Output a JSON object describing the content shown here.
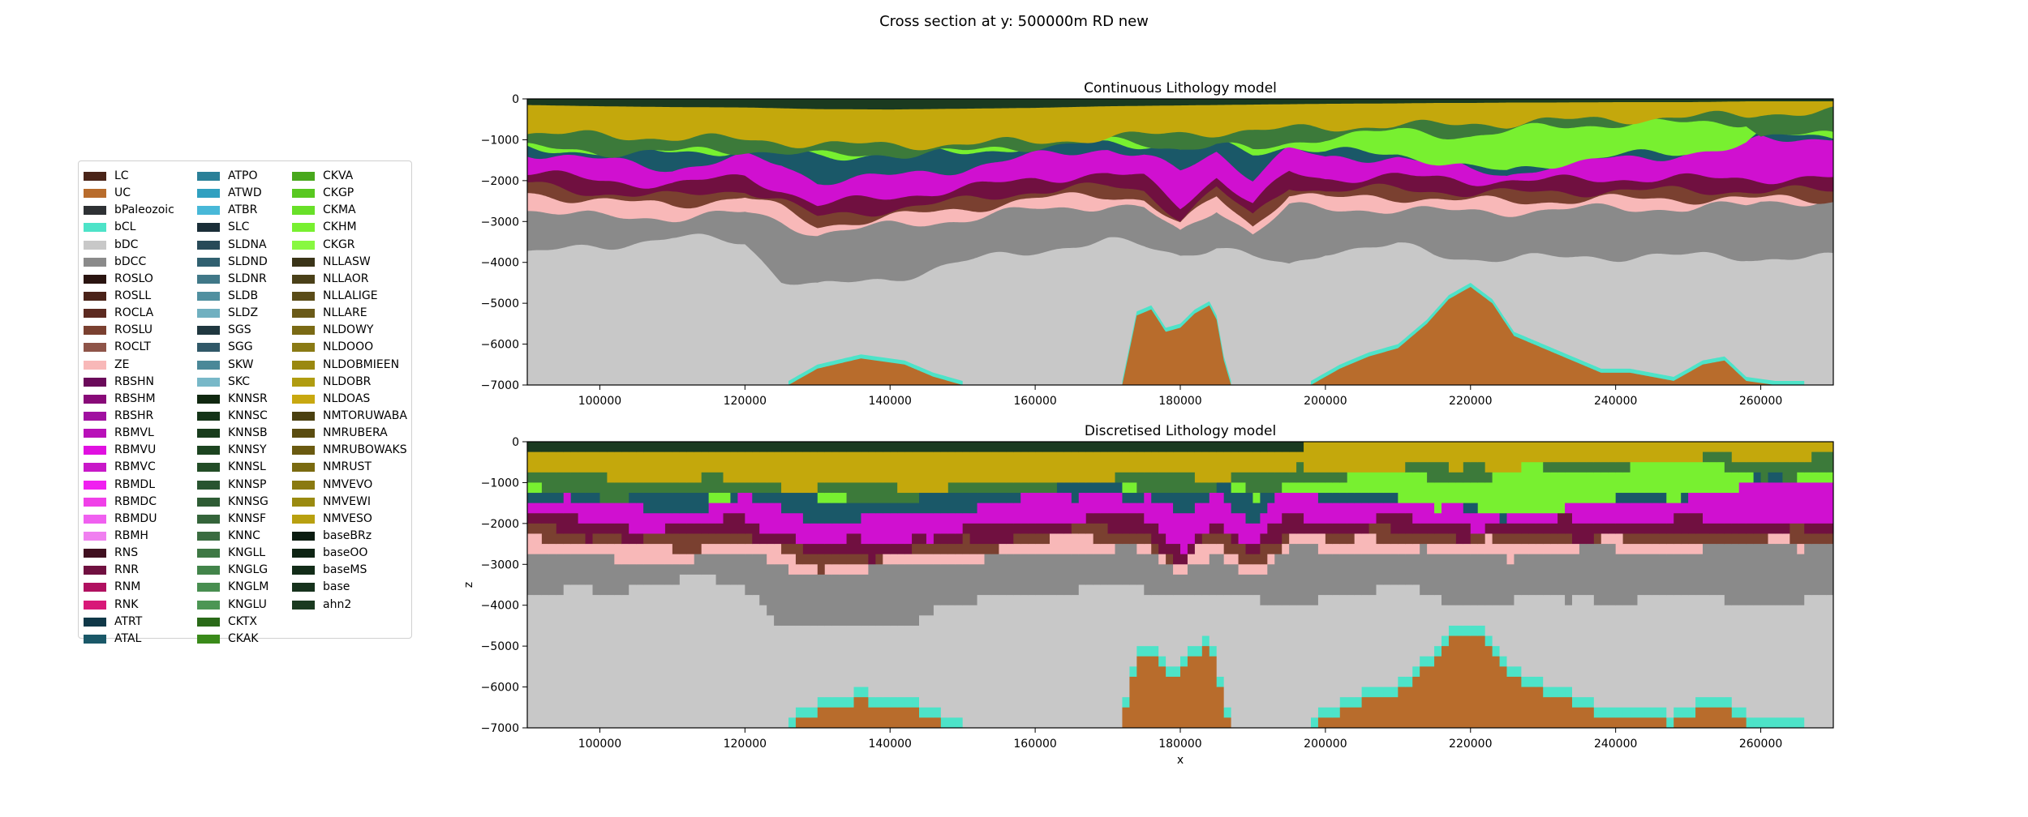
{
  "figure_title": "Cross section at y: 500000m RD new",
  "legend": [
    {
      "label": "LC",
      "color": "#4a2418"
    },
    {
      "label": "UC",
      "color": "#b86c2c"
    },
    {
      "label": "bPaleozoic",
      "color": "#2e3134"
    },
    {
      "label": "bCL",
      "color": "#4de3c8"
    },
    {
      "label": "bDC",
      "color": "#c8c8c8"
    },
    {
      "label": "bDCC",
      "color": "#8a8a8a"
    },
    {
      "label": "ROSLO",
      "color": "#2a1410"
    },
    {
      "label": "ROSLL",
      "color": "#4a2218"
    },
    {
      "label": "ROCLA",
      "color": "#5c2a20"
    },
    {
      "label": "ROSLU",
      "color": "#7a4030"
    },
    {
      "label": "ROCLT",
      "color": "#8e5448"
    },
    {
      "label": "ZE",
      "color": "#f8b8b8"
    },
    {
      "label": "RBSHN",
      "color": "#6a0a5a"
    },
    {
      "label": "RBSHM",
      "color": "#880a78"
    },
    {
      "label": "RBSHR",
      "color": "#a010a0"
    },
    {
      "label": "RBMVL",
      "color": "#b810b8"
    },
    {
      "label": "RBMVU",
      "color": "#e010e0"
    },
    {
      "label": "RBMVC",
      "color": "#c818c8"
    },
    {
      "label": "RBMDL",
      "color": "#f020f0"
    },
    {
      "label": "RBMDC",
      "color": "#f040e8"
    },
    {
      "label": "RBMDU",
      "color": "#f060f0"
    },
    {
      "label": "RBMH",
      "color": "#f080f0"
    },
    {
      "label": "RNS",
      "color": "#401020"
    },
    {
      "label": "RNR",
      "color": "#701040"
    },
    {
      "label": "RNM",
      "color": "#b01060"
    },
    {
      "label": "RNK",
      "color": "#d81878"
    },
    {
      "label": "ATRT",
      "color": "#103848"
    },
    {
      "label": "ATAL",
      "color": "#1a5868"
    },
    {
      "label": "ATPO",
      "color": "#2a8098"
    },
    {
      "label": "ATWD",
      "color": "#30a0c0"
    },
    {
      "label": "ATBR",
      "color": "#48b8d8"
    },
    {
      "label": "SLC",
      "color": "#1a2e38"
    },
    {
      "label": "SLDNA",
      "color": "#284a58"
    },
    {
      "label": "SLDND",
      "color": "#306070"
    },
    {
      "label": "SLDNR",
      "color": "#407888"
    },
    {
      "label": "SLDB",
      "color": "#5090a0"
    },
    {
      "label": "SLDZ",
      "color": "#70b0c0"
    },
    {
      "label": "SGS",
      "color": "#203840"
    },
    {
      "label": "SGG",
      "color": "#305868"
    },
    {
      "label": "SKW",
      "color": "#4a8898"
    },
    {
      "label": "SKC",
      "color": "#78b8c8"
    },
    {
      "label": "KNNSR",
      "color": "#102810"
    },
    {
      "label": "KNNSC",
      "color": "#143418"
    },
    {
      "label": "KNNSB",
      "color": "#183c1c"
    },
    {
      "label": "KNNSY",
      "color": "#1c4420"
    },
    {
      "label": "KNNSL",
      "color": "#224c26"
    },
    {
      "label": "KNNSP",
      "color": "#285430"
    },
    {
      "label": "KNNSG",
      "color": "#2e5c34"
    },
    {
      "label": "KNNSF",
      "color": "#34643a"
    },
    {
      "label": "KNNC",
      "color": "#3a6c40"
    },
    {
      "label": "KNGLL",
      "color": "#3e7844"
    },
    {
      "label": "KNGLG",
      "color": "#42844a"
    },
    {
      "label": "KNGLM",
      "color": "#488e50"
    },
    {
      "label": "KNGLU",
      "color": "#4c9654"
    },
    {
      "label": "CKTX",
      "color": "#2a6a18"
    },
    {
      "label": "CKAK",
      "color": "#3a8a1a"
    },
    {
      "label": "CKVA",
      "color": "#48a81c"
    },
    {
      "label": "CKGP",
      "color": "#58c820"
    },
    {
      "label": "CKMA",
      "color": "#68e028"
    },
    {
      "label": "CKHM",
      "color": "#78f030"
    },
    {
      "label": "CKGR",
      "color": "#88f840"
    },
    {
      "label": "NLLASW",
      "color": "#3a3418"
    },
    {
      "label": "NLLAOR",
      "color": "#4a4018"
    },
    {
      "label": "NLLALIGE",
      "color": "#5a4c18"
    },
    {
      "label": "NLLARE",
      "color": "#6a5a18"
    },
    {
      "label": "NLDOWY",
      "color": "#7a6a14"
    },
    {
      "label": "NLDOOO",
      "color": "#8a7a14"
    },
    {
      "label": "NLDOBMIEEN",
      "color": "#9a8810"
    },
    {
      "label": "NLDOBR",
      "color": "#b09c10"
    },
    {
      "label": "NLDOAS",
      "color": "#c8a810"
    },
    {
      "label": "NMTORUWABA",
      "color": "#4a4010"
    },
    {
      "label": "NMRUBERA",
      "color": "#5a4c10"
    },
    {
      "label": "NMRUBOWAKS",
      "color": "#6a5a10"
    },
    {
      "label": "NMRUST",
      "color": "#7a6a10"
    },
    {
      "label": "NMVEVO",
      "color": "#8a7a10"
    },
    {
      "label": "NMVEWI",
      "color": "#9a8a10"
    },
    {
      "label": "NMVESO",
      "color": "#b8a010"
    },
    {
      "label": "baseBRz",
      "color": "#0a1c10"
    },
    {
      "label": "baseOO",
      "color": "#0e2414"
    },
    {
      "label": "baseMS",
      "color": "#122c18"
    },
    {
      "label": "base",
      "color": "#16321c"
    },
    {
      "label": "ahn2",
      "color": "#1a3a20"
    }
  ],
  "chart_data": [
    {
      "type": "area",
      "title": "Continuous Lithology model",
      "xlabel": "",
      "ylabel": "",
      "xlim": [
        90000,
        270000
      ],
      "ylim": [
        -7000,
        0
      ],
      "xticks": [
        100000,
        120000,
        140000,
        160000,
        180000,
        200000,
        220000,
        240000,
        260000
      ],
      "xtick_labels": [
        "100000",
        "120000",
        "140000",
        "160000",
        "180000",
        "200000",
        "220000",
        "240000",
        "260000"
      ],
      "yticks": [
        0,
        -1000,
        -2000,
        -3000,
        -4000,
        -5000,
        -6000,
        -7000
      ],
      "ytick_labels": [
        "0",
        "−1000",
        "−2000",
        "−3000",
        "−4000",
        "−5000",
        "−6000",
        "−7000"
      ],
      "x": [
        90000,
        100000,
        110000,
        120000,
        125000,
        130000,
        140000,
        150000,
        160000,
        165000,
        170000,
        175000,
        180000,
        185000,
        190000,
        195000,
        200000,
        210000,
        215000,
        220000,
        225000,
        230000,
        240000,
        250000,
        258000,
        260000,
        270000
      ],
      "series": [
        {
          "key": "ahn2",
          "color": "#1a3a20",
          "base": [
            -150,
            -180,
            -200,
            -210,
            -230,
            -250,
            -260,
            -240,
            -220,
            -200,
            -180,
            -170,
            -160,
            -150,
            -140,
            -130,
            -120,
            -110,
            -100,
            -100,
            -90,
            -90,
            -80,
            -80,
            -60,
            -60,
            -60
          ]
        },
        {
          "key": "NMVESO",
          "color": "#c4a80c",
          "base": [
            -850,
            -900,
            -950,
            -1000,
            -1050,
            -1100,
            -1150,
            -1100,
            -1050,
            -1000,
            -950,
            -900,
            -850,
            -800,
            -800,
            -750,
            -700,
            -650,
            -650,
            -600,
            -600,
            -550,
            -500,
            -450,
            -400,
            -350,
            -300
          ]
        },
        {
          "key": "KNNSP",
          "color": "#3c7a3a",
          "base": [
            -1200,
            -1300,
            -1300,
            -1250,
            -1300,
            -1400,
            -1350,
            -1300,
            -1150,
            -1100,
            -1050,
            -1100,
            -1200,
            -1100,
            -1300,
            -1100,
            -900,
            -800,
            -850,
            -900,
            -800,
            -700,
            -600,
            -600,
            -550,
            -900,
            -900
          ]
        },
        {
          "key": "CKHM",
          "color": "#78f030",
          "base": [
            -1200,
            -1300,
            -1300,
            -1250,
            -1300,
            -1400,
            -1350,
            -1300,
            -1150,
            -1100,
            -1050,
            -1100,
            -1200,
            -1100,
            -1300,
            -1150,
            -1300,
            -1350,
            -1500,
            -1700,
            -1800,
            -1600,
            -1400,
            -1300,
            -1100,
            -900,
            -900
          ]
        },
        {
          "key": "ATAL",
          "color": "#1a5868",
          "base": [
            -1300,
            -1500,
            -1700,
            -1450,
            -1600,
            -2000,
            -1900,
            -1700,
            -1400,
            -1300,
            -1200,
            -1400,
            -1800,
            -1300,
            -1900,
            -1200,
            -1500,
            -1400,
            -1550,
            -1750,
            -1850,
            -1650,
            -1450,
            -1350,
            -1150,
            -950,
            -950
          ]
        },
        {
          "key": "RBMVU",
          "color": "#d010d0",
          "base": [
            -1800,
            -2000,
            -2100,
            -1900,
            -2200,
            -2600,
            -2400,
            -2200,
            -1950,
            -1900,
            -1850,
            -1950,
            -2600,
            -1900,
            -2600,
            -1800,
            -1950,
            -1900,
            -1950,
            -2000,
            -2000,
            -2000,
            -1950,
            -1950,
            -1950,
            -1950,
            -1950
          ]
        },
        {
          "key": "RNR",
          "color": "#701040",
          "base": [
            -2100,
            -2300,
            -2400,
            -2200,
            -2500,
            -2900,
            -2700,
            -2500,
            -2250,
            -2200,
            -2150,
            -2250,
            -2900,
            -2200,
            -2900,
            -2100,
            -2250,
            -2200,
            -2250,
            -2300,
            -2300,
            -2300,
            -2250,
            -2250,
            -2250,
            -2250,
            -2250
          ]
        },
        {
          "key": "ROSLU",
          "color": "#7a4030",
          "base": [
            -2300,
            -2500,
            -2600,
            -2400,
            -2700,
            -3100,
            -2900,
            -2700,
            -2450,
            -2400,
            -2350,
            -2450,
            -3100,
            -2400,
            -3100,
            -2300,
            -2450,
            -2400,
            -2450,
            -2500,
            -2500,
            -2500,
            -2450,
            -2450,
            -2450,
            -2450,
            -2450
          ]
        },
        {
          "key": "ZE",
          "color": "#f8b8b8",
          "base": [
            -2700,
            -2900,
            -2900,
            -2800,
            -3000,
            -3300,
            -3100,
            -2950,
            -2700,
            -2650,
            -2600,
            -2700,
            -3300,
            -2650,
            -3300,
            -2650,
            -2700,
            -2700,
            -2750,
            -2750,
            -2750,
            -2750,
            -2650,
            -2700,
            -2600,
            -2500,
            -2500
          ]
        },
        {
          "key": "bDCC",
          "color": "#8a8a8a",
          "base": [
            -3800,
            -3600,
            -3400,
            -3500,
            -4400,
            -4600,
            -4400,
            -4000,
            -3700,
            -3600,
            -3500,
            -3600,
            -3800,
            -3600,
            -3900,
            -4100,
            -3700,
            -3600,
            -3800,
            -3900,
            -3900,
            -3900,
            -3850,
            -3850,
            -3850,
            -3900,
            -3900
          ]
        },
        {
          "key": "bDC",
          "color": "#c8c8c8",
          "base": [
            -7000,
            -7000,
            -7000,
            -7000,
            -7000,
            -7000,
            -7000,
            -7000,
            -7000,
            -7000,
            -7000,
            -7000,
            -7000,
            -7000,
            -7000,
            -7000,
            -7000,
            -7000,
            -7000,
            -7000,
            -7000,
            -7000,
            -7000,
            -7000,
            -7000,
            -7000,
            -7000
          ]
        }
      ],
      "uc_bodies": [
        {
          "x": [
            126000,
            130000,
            136000,
            142000,
            146000,
            150000
          ],
          "top": [
            -7000,
            -6600,
            -6350,
            -6500,
            -6800,
            -7000
          ]
        },
        {
          "x": [
            172000,
            174000,
            176000,
            178000,
            180000,
            182000,
            184000,
            185000,
            186000,
            187000
          ],
          "top": [
            -7000,
            -5300,
            -5150,
            -5700,
            -5600,
            -5250,
            -5050,
            -5400,
            -6400,
            -7000
          ]
        },
        {
          "x": [
            198000,
            202000,
            206000,
            210000,
            214000,
            217000,
            220000,
            223000,
            226000,
            230000,
            234000,
            238000,
            242000,
            248000,
            252000,
            255000,
            258000,
            262000,
            266000
          ],
          "top": [
            -7000,
            -6600,
            -6300,
            -6100,
            -5500,
            -4900,
            -4600,
            -5000,
            -5800,
            -6100,
            -6400,
            -6700,
            -6700,
            -6900,
            -6500,
            -6400,
            -6900,
            -7000,
            -7000
          ]
        }
      ]
    },
    {
      "type": "heatmap",
      "title": "Discretised Lithology model",
      "xlabel": "x",
      "ylabel": "z",
      "xlim": [
        90000,
        270000
      ],
      "ylim": [
        -7000,
        0
      ],
      "xticks": [
        100000,
        120000,
        140000,
        160000,
        180000,
        200000,
        220000,
        240000,
        260000
      ],
      "xtick_labels": [
        "100000",
        "120000",
        "140000",
        "160000",
        "180000",
        "200000",
        "220000",
        "240000",
        "260000"
      ],
      "yticks": [
        0,
        -1000,
        -2000,
        -3000,
        -4000,
        -5000,
        -6000,
        -7000
      ],
      "ytick_labels": [
        "0",
        "−1000",
        "−2000",
        "−3000",
        "−4000",
        "−5000",
        "−6000",
        "−7000"
      ],
      "cell_width_m": 1000,
      "cell_height_m": 250,
      "note_source": "same lithology layers as the continuous model, sampled on the grid"
    }
  ]
}
